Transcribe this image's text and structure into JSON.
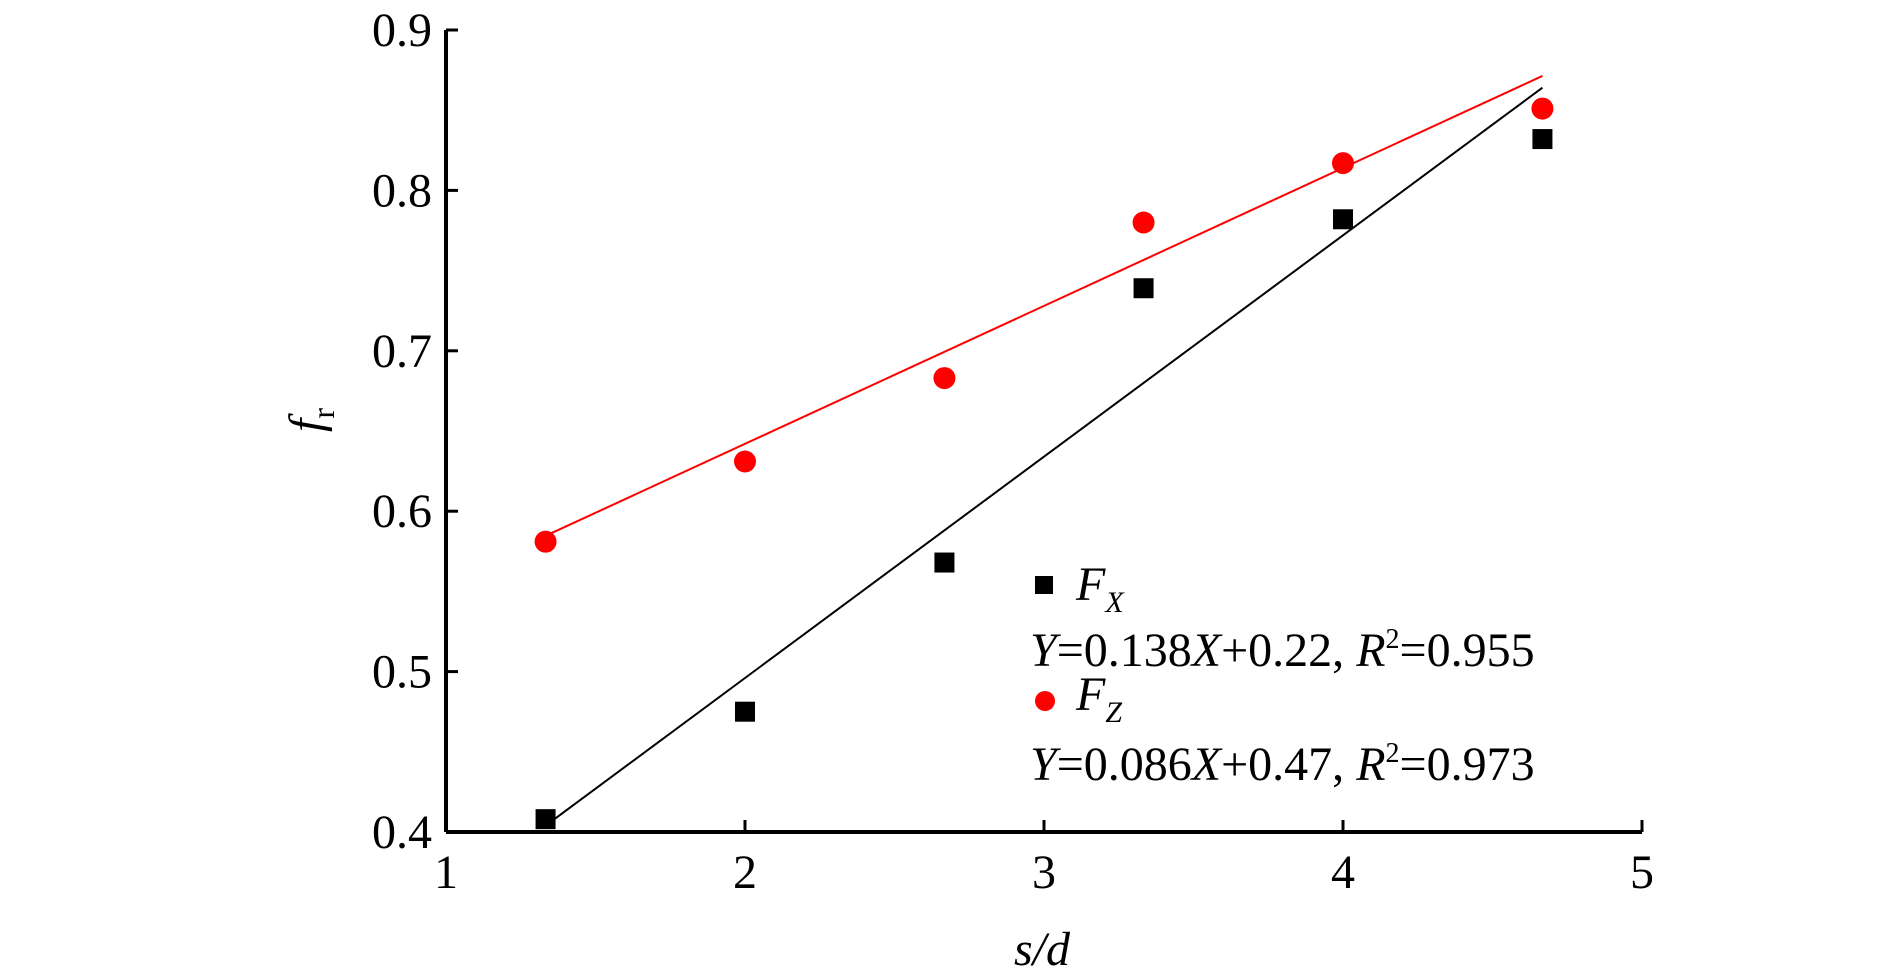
{
  "chart_data": {
    "type": "scatter",
    "xlabel": {
      "main": "s/d"
    },
    "ylabel": {
      "main": "f",
      "sub": "r"
    },
    "xlim": [
      1,
      5
    ],
    "ylim": [
      0.4,
      0.9
    ],
    "x_ticks": [
      "1",
      "2",
      "3",
      "4",
      "5"
    ],
    "y_ticks": [
      "0.4",
      "0.5",
      "0.6",
      "0.7",
      "0.8",
      "0.9"
    ],
    "grid": false,
    "legend_position": "bottom-right",
    "series": [
      {
        "name": "F_X",
        "name_main": "F",
        "name_sub": "X",
        "marker": "square",
        "color": "#000000",
        "x": [
          1.333,
          2.0,
          2.667,
          3.333,
          4.0,
          4.667
        ],
        "y": [
          0.408,
          0.475,
          0.568,
          0.739,
          0.782,
          0.832
        ],
        "fit": {
          "slope": 0.138,
          "intercept": 0.22
        },
        "fit_text": [
          "Y",
          "=0.138",
          "X",
          "+0.22, ",
          "R",
          "2",
          "=0.955"
        ]
      },
      {
        "name": "F_Z",
        "name_main": "F",
        "name_sub": "Z",
        "marker": "circle",
        "color": "#ff0000",
        "x": [
          1.333,
          2.0,
          2.667,
          3.333,
          4.0,
          4.667
        ],
        "y": [
          0.581,
          0.631,
          0.683,
          0.78,
          0.817,
          0.851
        ],
        "fit": {
          "slope": 0.086,
          "intercept": 0.47
        },
        "fit_text": [
          "Y",
          "=0.086",
          "X",
          "+0.47, ",
          "R",
          "2",
          "=0.973"
        ]
      }
    ]
  }
}
